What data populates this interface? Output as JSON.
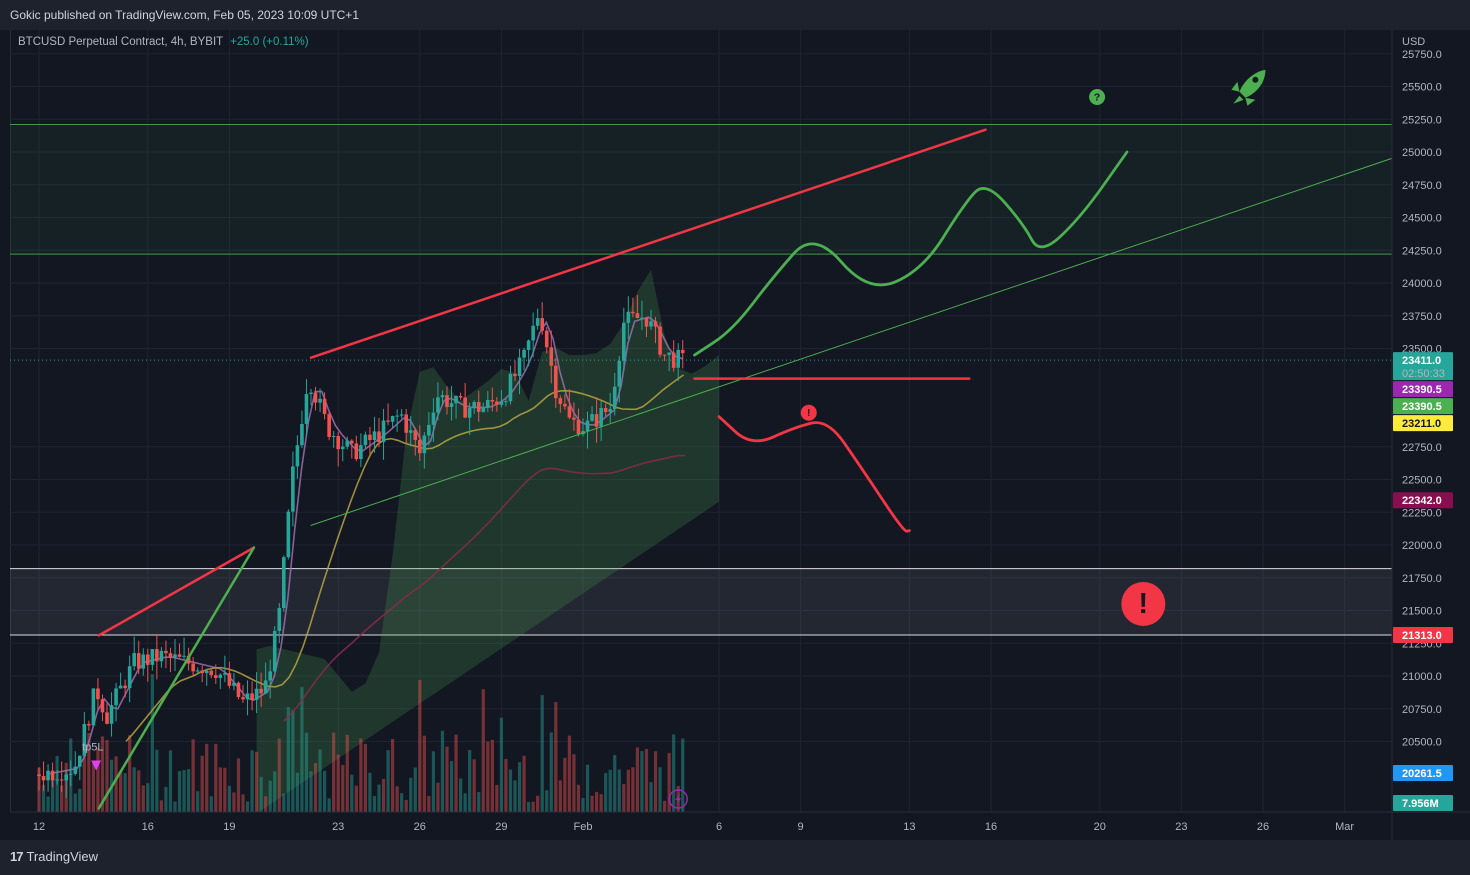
{
  "header": {
    "published_by": "Gokic published on TradingView.com, Feb 05, 2023 10:09 UTC+1"
  },
  "legend": {
    "symbol": "BTCUSD Perpetual Contract, 4h, BYBIT",
    "change": "+25.0 (+0.11%)"
  },
  "footer": {
    "brand": "TradingView"
  },
  "chart_data": {
    "type": "candlestick",
    "currency": "USD",
    "y_axis": {
      "ticks": [
        25750,
        25500,
        25250,
        25000,
        24750,
        24500,
        24250,
        24000,
        23750,
        23500,
        22750,
        22500,
        22250,
        22000,
        21750,
        21500,
        21250,
        21000,
        20750,
        20500
      ],
      "tick_labels": [
        "25750.0",
        "25500.0",
        "25250.0",
        "25000.0",
        "24750.0",
        "24500.0",
        "24250.0",
        "24000.0",
        "23750.0",
        "23500.0",
        "22750.0",
        "22500.0",
        "22250.0",
        "22000.0",
        "21750.0",
        "21500.0",
        "21250.0",
        "21000.0",
        "20750.0",
        "20500.0"
      ]
    },
    "x_axis": {
      "tick_labels": [
        {
          "label": "12",
          "day": 12
        },
        {
          "label": "16",
          "day": 16
        },
        {
          "label": "19",
          "day": 19
        },
        {
          "label": "23",
          "day": 23
        },
        {
          "label": "26",
          "day": 26
        },
        {
          "label": "29",
          "day": 29
        },
        {
          "label": "Feb",
          "day": 32
        },
        {
          "label": "6",
          "day": 37
        },
        {
          "label": "9",
          "day": 40
        },
        {
          "label": "13",
          "day": 44
        },
        {
          "label": "16",
          "day": 47
        },
        {
          "label": "20",
          "day": 51
        },
        {
          "label": "23",
          "day": 54
        },
        {
          "label": "26",
          "day": 57
        },
        {
          "label": "Mar",
          "day": 60
        }
      ]
    },
    "price_badges": [
      {
        "value": "23411.0",
        "sub": "02:50:33",
        "price": 23411,
        "color": "#26a69a"
      },
      {
        "value": "23390.5",
        "price": 23390.5,
        "color": "#9c27b0"
      },
      {
        "value": "23390.5",
        "price": 23390.5,
        "color": "#4caf50"
      },
      {
        "value": "23211.0",
        "price": 23211,
        "color": "#ffeb3b"
      },
      {
        "value": "22342.0",
        "price": 22342,
        "color": "#880e4f"
      },
      {
        "value": "21313.0",
        "price": 21313,
        "color": "#f23645"
      },
      {
        "value": "20261.5",
        "price": 20261.5,
        "color": "#2196f3"
      },
      {
        "value": "7.956M",
        "price": 20050,
        "color": "#26a69a"
      }
    ],
    "zones": [
      {
        "name": "resistance-zone",
        "from": 24220,
        "to": 25210,
        "color": "#4caf50"
      },
      {
        "name": "support-zone",
        "from": 21313,
        "to": 21820,
        "color": "#ffffff"
      }
    ],
    "trend_lines": [
      {
        "name": "upper-red",
        "points": [
          [
            22.0,
            23430
          ],
          [
            46.8,
            25170
          ]
        ],
        "color": "#f23645"
      },
      {
        "name": "lower-green",
        "points": [
          [
            22.0,
            22150
          ],
          [
            62.0,
            24970
          ]
        ],
        "color": "#4caf50"
      },
      {
        "name": "small-red",
        "points": [
          [
            14.2,
            21310
          ],
          [
            19.9,
            21980
          ]
        ],
        "color": "#f23645"
      },
      {
        "name": "small-green",
        "points": [
          [
            14.2,
            19990
          ],
          [
            19.9,
            21980
          ]
        ],
        "color": "#4caf50"
      },
      {
        "name": "horizontal-red",
        "points": [
          [
            36.1,
            23270
          ],
          [
            46.2,
            23270
          ]
        ],
        "color": "#f23645"
      }
    ],
    "projections": [
      {
        "name": "bull-path",
        "color": "#4caf50",
        "points": [
          [
            36.1,
            23450
          ],
          [
            37.5,
            23640
          ],
          [
            39.0,
            24050
          ],
          [
            40.5,
            24400
          ],
          [
            42.5,
            23920
          ],
          [
            44.5,
            24100
          ],
          [
            46.0,
            24600
          ],
          [
            46.8,
            24780
          ],
          [
            48.2,
            24450
          ],
          [
            48.8,
            24210
          ],
          [
            50.3,
            24500
          ],
          [
            52.0,
            25000
          ]
        ]
      },
      {
        "name": "bear-path",
        "color": "#f23645",
        "points": [
          [
            37.0,
            22980
          ],
          [
            38.2,
            22750
          ],
          [
            39.8,
            22900
          ],
          [
            41.0,
            22960
          ],
          [
            42.2,
            22600
          ],
          [
            43.8,
            22100
          ],
          [
            44.0,
            22110
          ]
        ]
      }
    ],
    "icons": [
      {
        "name": "question-icon",
        "day": 50.9,
        "price": 25420,
        "color": "#4caf50",
        "glyph": "?"
      },
      {
        "name": "rocket-icon",
        "day": 56.5,
        "price": 25490,
        "color": "#4caf50",
        "glyph": "rocket"
      },
      {
        "name": "warning-small-icon",
        "day": 40.3,
        "price": 23010,
        "color": "#f23645",
        "glyph": "!"
      },
      {
        "name": "warning-large-icon",
        "day": 52.6,
        "price": 21550,
        "color": "#f23645",
        "glyph": "!"
      }
    ],
    "annotation": {
      "text": "tp5L",
      "day": 14.1,
      "price": 20370,
      "color": "#b2b5be"
    },
    "last_price": 23411
  }
}
